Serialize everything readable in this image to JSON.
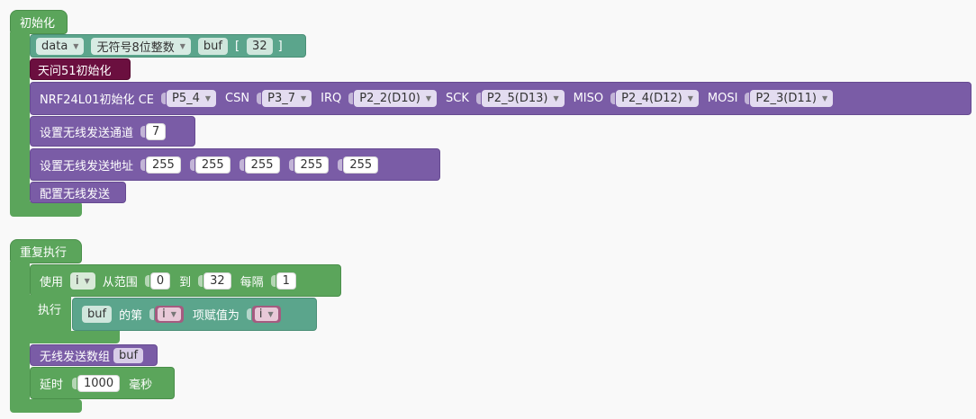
{
  "init_block": {
    "title": "初始化",
    "declare": {
      "var_name": "data",
      "type": "无符号8位整数",
      "array_name": "buf",
      "bracket_open": "[",
      "size": "32",
      "bracket_close": "]"
    },
    "board_init": "天问51初始化",
    "nrf_init": {
      "label": "NRF24L01初始化 CE",
      "ce": "P5_4",
      "csn_label": "CSN",
      "csn": "P3_7",
      "irq_label": "IRQ",
      "irq": "P2_2(D10)",
      "sck_label": "SCK",
      "sck": "P2_5(D13)",
      "miso_label": "MISO",
      "miso": "P2_4(D12)",
      "mosi_label": "MOSI",
      "mosi": "P2_3(D11)"
    },
    "set_channel": {
      "label": "设置无线发送通道",
      "value": "7"
    },
    "set_address": {
      "label": "设置无线发送地址",
      "values": [
        "255",
        "255",
        "255",
        "255",
        "255"
      ]
    },
    "config_send": "配置无线发送"
  },
  "loop_block": {
    "title": "重复执行",
    "for_loop": {
      "use_label": "使用",
      "var": "i",
      "from_label": "从范围",
      "from": "0",
      "to_label": "到",
      "to": "32",
      "step_label": "每隔",
      "step": "1",
      "do_label": "执行"
    },
    "assign": {
      "array": "buf",
      "of_label": "的第",
      "index": "i",
      "set_label": "项赋值为",
      "value": "i"
    },
    "send_array": {
      "label": "无线发送数组",
      "array": "buf"
    },
    "delay": {
      "label": "延时",
      "value": "1000",
      "unit": "毫秒"
    }
  }
}
